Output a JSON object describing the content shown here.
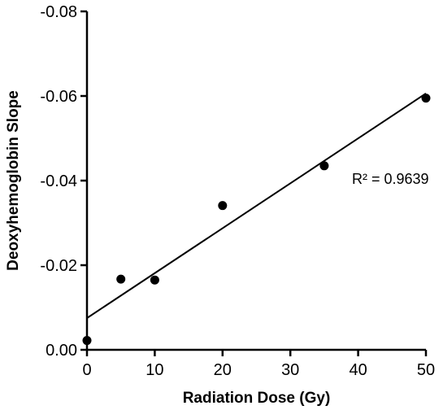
{
  "chart_data": {
    "type": "scatter",
    "xlabel": "Radiation Dose (Gy)",
    "ylabel": "Deoxyhemoglobin Slope",
    "xlim": [
      0,
      50
    ],
    "ylim": [
      0,
      -0.08
    ],
    "x_ticks": [
      "0",
      "10",
      "20",
      "30",
      "40",
      "50"
    ],
    "y_ticks": [
      "0.00",
      "-0.02",
      "-0.04",
      "-0.06",
      "-0.08"
    ],
    "grid": false,
    "points": [
      {
        "x": 0,
        "y": -0.0022
      },
      {
        "x": 5,
        "y": -0.0167
      },
      {
        "x": 10,
        "y": -0.0165
      },
      {
        "x": 20,
        "y": -0.0341
      },
      {
        "x": 35,
        "y": -0.0435
      },
      {
        "x": 50,
        "y": -0.0595
      }
    ],
    "fit_line": {
      "x": [
        0,
        50
      ],
      "y": [
        -0.0075,
        -0.0606
      ]
    },
    "annotation": "R² = 0.9639"
  }
}
